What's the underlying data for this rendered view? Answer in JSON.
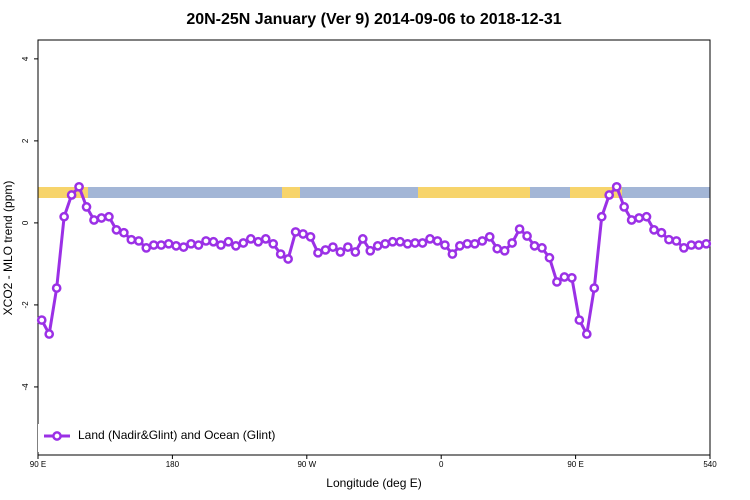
{
  "chart_data": {
    "type": "line",
    "title": "20N-25N January (Ver 9)   2014-09-06 to 2018-12-31",
    "x_label": "Longitude (deg E)",
    "y_label": "XCO2 - MLO trend (ppm)",
    "x": [
      92.5,
      97.5,
      102.5,
      107.5,
      112.5,
      117.5,
      122.5,
      127.5,
      132.5,
      137.5,
      142.5,
      147.5,
      152.5,
      157.5,
      162.5,
      167.5,
      172.5,
      177.5,
      182.5,
      187.5,
      192.5,
      197.5,
      202.5,
      207.5,
      212.5,
      217.5,
      222.5,
      227.5,
      232.5,
      237.5,
      242.5,
      247.5,
      252.5,
      257.5,
      262.5,
      267.5,
      272.5,
      277.5,
      282.5,
      287.5,
      292.5,
      297.5,
      302.5,
      307.5,
      312.5,
      317.5,
      322.5,
      327.5,
      332.5,
      337.5,
      342.5,
      347.5,
      352.5,
      357.5,
      362.5,
      367.5,
      372.5,
      377.5,
      382.5,
      387.5,
      392.5,
      397.5,
      402.5,
      407.5,
      412.5,
      417.5,
      422.5,
      427.5,
      432.5,
      437.5,
      442.5,
      447.5,
      452.5,
      457.5,
      462.5,
      467.5,
      472.5,
      477.5,
      482.5,
      487.5,
      492.5,
      497.5,
      502.5,
      507.5,
      512.5,
      517.5,
      522.5,
      527.5,
      532.5,
      537.5
    ],
    "series": [
      {
        "name": "Land (Nadir&Glint) and Ocean (Glint)",
        "color": "#9b30e6",
        "values": [
          -2.37,
          -2.71,
          -1.59,
          0.15,
          0.68,
          0.88,
          0.39,
          0.07,
          0.12,
          0.15,
          -0.17,
          -0.24,
          -0.41,
          -0.44,
          -0.61,
          -0.54,
          -0.54,
          -0.51,
          -0.56,
          -0.59,
          -0.51,
          -0.54,
          -0.44,
          -0.46,
          -0.54,
          -0.46,
          -0.56,
          -0.49,
          -0.39,
          -0.46,
          -0.39,
          -0.51,
          -0.76,
          -0.88,
          -0.22,
          -0.27,
          -0.34,
          -0.73,
          -0.66,
          -0.59,
          -0.71,
          -0.59,
          -0.71,
          -0.39,
          -0.68,
          -0.56,
          -0.51,
          -0.46,
          -0.46,
          -0.51,
          -0.49,
          -0.49,
          -0.39,
          -0.44,
          -0.54,
          -0.76,
          -0.56,
          -0.51,
          -0.51,
          -0.44,
          -0.34,
          -0.63,
          -0.68,
          -0.49,
          -0.15,
          -0.32,
          -0.56,
          -0.61,
          -0.85,
          -1.44,
          -1.32,
          -1.34,
          -2.37,
          -2.71,
          -1.59,
          0.15,
          0.68,
          0.88,
          0.39,
          0.07,
          0.12,
          0.15,
          -0.17,
          -0.24,
          -0.41,
          -0.44,
          -0.61,
          -0.54,
          -0.54,
          -0.51
        ]
      }
    ],
    "xlim": [
      90,
      540
    ],
    "xticks": [
      {
        "value": 90,
        "label": "90 E"
      },
      180,
      {
        "value": 270,
        "label": "90 W"
      },
      {
        "value": 360,
        "label": "0"
      },
      {
        "value": 450,
        "label": "90 E"
      },
      540
    ],
    "ylim": [
      -5.66,
      4.46
    ],
    "yticks": [
      -4,
      -2,
      0,
      2,
      4
    ],
    "legend": "bottomleft",
    "grid": false
  }
}
